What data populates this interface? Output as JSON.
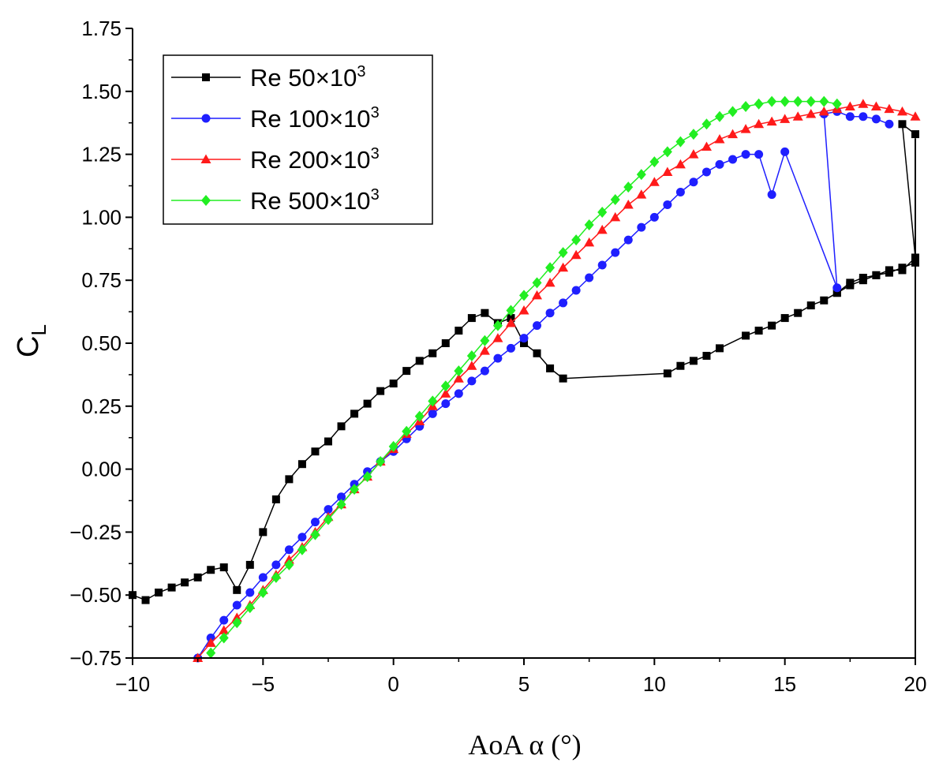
{
  "chart_data": {
    "type": "line",
    "title": "",
    "xlabel": "AoA α (°)",
    "ylabel": {
      "main": "C",
      "sub": "L"
    },
    "xlim": [
      -10,
      20
    ],
    "ylim": [
      -0.75,
      1.75
    ],
    "xticks": [
      -10,
      -5,
      0,
      5,
      10,
      15,
      20
    ],
    "xtick_labels": [
      "−10",
      "−5",
      "0",
      "5",
      "10",
      "15",
      "20"
    ],
    "yticks": [
      -0.75,
      -0.5,
      -0.25,
      0,
      0.25,
      0.5,
      0.75,
      1.0,
      1.25,
      1.5,
      1.75
    ],
    "ytick_labels": [
      "−0.75",
      "−0.50",
      "−0.25",
      "0.00",
      "0.25",
      "0.50",
      "0.75",
      "1.00",
      "1.25",
      "1.50",
      "1.75"
    ],
    "grid": false,
    "legend_position": "top-left",
    "series": [
      {
        "name": "Re 50×10",
        "name_sup": "3",
        "color": "#000000",
        "marker": "square",
        "points": [
          [
            -10,
            -0.5
          ],
          [
            -9.5,
            -0.52
          ],
          [
            -9,
            -0.49
          ],
          [
            -8.5,
            -0.47
          ],
          [
            -8,
            -0.45
          ],
          [
            -7.5,
            -0.43
          ],
          [
            -7,
            -0.4
          ],
          [
            -6.5,
            -0.39
          ],
          [
            -6,
            -0.48
          ],
          [
            -5.5,
            -0.38
          ],
          [
            -5,
            -0.25
          ],
          [
            -4.5,
            -0.12
          ],
          [
            -4,
            -0.04
          ],
          [
            -3.5,
            0.02
          ],
          [
            -3,
            0.07
          ],
          [
            -2.5,
            0.11
          ],
          [
            -2,
            0.17
          ],
          [
            -1.5,
            0.22
          ],
          [
            -1,
            0.26
          ],
          [
            -0.5,
            0.31
          ],
          [
            0,
            0.34
          ],
          [
            0.5,
            0.39
          ],
          [
            1,
            0.43
          ],
          [
            1.5,
            0.46
          ],
          [
            2,
            0.5
          ],
          [
            2.5,
            0.55
          ],
          [
            3,
            0.6
          ],
          [
            3.5,
            0.62
          ],
          [
            4,
            0.58
          ],
          [
            4.5,
            0.6
          ],
          [
            5,
            0.5
          ],
          [
            5.5,
            0.46
          ],
          [
            6,
            0.4
          ],
          [
            6.5,
            0.36
          ],
          [
            10.5,
            0.38
          ],
          [
            11,
            0.41
          ],
          [
            11.5,
            0.43
          ],
          [
            12,
            0.45
          ],
          [
            12.5,
            0.48
          ],
          [
            13.5,
            0.53
          ],
          [
            14,
            0.55
          ],
          [
            14.5,
            0.57
          ],
          [
            15,
            0.6
          ],
          [
            15.5,
            0.62
          ],
          [
            16,
            0.65
          ],
          [
            16.5,
            0.67
          ],
          [
            17,
            0.7
          ],
          [
            17.5,
            0.73
          ],
          [
            18,
            0.75
          ],
          [
            18.5,
            0.77
          ],
          [
            19,
            0.78
          ],
          [
            19.5,
            0.8
          ],
          [
            20,
            0.82
          ],
          [
            20,
            1.33
          ],
          [
            19.5,
            1.37
          ],
          [
            20,
            0.84
          ],
          [
            19.5,
            0.79
          ],
          [
            19,
            0.79
          ],
          [
            18.5,
            0.77
          ],
          [
            18,
            0.76
          ],
          [
            17.5,
            0.74
          ],
          [
            17,
            0.7
          ]
        ]
      },
      {
        "name": "Re 100×10",
        "name_sup": "3",
        "color": "#1f1fff",
        "marker": "circle",
        "points": [
          [
            -7.5,
            -0.75
          ],
          [
            -7,
            -0.67
          ],
          [
            -6.5,
            -0.6
          ],
          [
            -6,
            -0.54
          ],
          [
            -5.5,
            -0.49
          ],
          [
            -5,
            -0.43
          ],
          [
            -4.5,
            -0.38
          ],
          [
            -4,
            -0.32
          ],
          [
            -3.5,
            -0.27
          ],
          [
            -3,
            -0.21
          ],
          [
            -2.5,
            -0.16
          ],
          [
            -2,
            -0.11
          ],
          [
            -1.5,
            -0.06
          ],
          [
            -1,
            -0.01
          ],
          [
            -0.5,
            0.03
          ],
          [
            0,
            0.07
          ],
          [
            0.5,
            0.12
          ],
          [
            1,
            0.17
          ],
          [
            1.5,
            0.22
          ],
          [
            2,
            0.26
          ],
          [
            2.5,
            0.3
          ],
          [
            3,
            0.35
          ],
          [
            3.5,
            0.39
          ],
          [
            4,
            0.44
          ],
          [
            4.5,
            0.48
          ],
          [
            5,
            0.52
          ],
          [
            5.5,
            0.57
          ],
          [
            6,
            0.62
          ],
          [
            6.5,
            0.66
          ],
          [
            7,
            0.71
          ],
          [
            7.5,
            0.76
          ],
          [
            8,
            0.81
          ],
          [
            8.5,
            0.86
          ],
          [
            9,
            0.91
          ],
          [
            9.5,
            0.96
          ],
          [
            10,
            1.0
          ],
          [
            10.5,
            1.05
          ],
          [
            11,
            1.1
          ],
          [
            11.5,
            1.14
          ],
          [
            12,
            1.18
          ],
          [
            12.5,
            1.21
          ],
          [
            13,
            1.23
          ],
          [
            13.5,
            1.25
          ],
          [
            14,
            1.25
          ],
          [
            14.5,
            1.09
          ],
          [
            15,
            1.26
          ],
          [
            17,
            0.72
          ],
          [
            16.5,
            1.41
          ],
          [
            17,
            1.42
          ],
          [
            17.5,
            1.4
          ],
          [
            18,
            1.4
          ],
          [
            18.5,
            1.39
          ],
          [
            19,
            1.37
          ]
        ]
      },
      {
        "name": "Re 200×10",
        "name_sup": "3",
        "color": "#ff1a1a",
        "marker": "triangle",
        "points": [
          [
            -7.5,
            -0.75
          ],
          [
            -7,
            -0.69
          ],
          [
            -6.5,
            -0.64
          ],
          [
            -6,
            -0.59
          ],
          [
            -5.5,
            -0.54
          ],
          [
            -5,
            -0.48
          ],
          [
            -4.5,
            -0.42
          ],
          [
            -4,
            -0.36
          ],
          [
            -3.5,
            -0.31
          ],
          [
            -3,
            -0.25
          ],
          [
            -2.5,
            -0.19
          ],
          [
            -2,
            -0.14
          ],
          [
            -1.5,
            -0.08
          ],
          [
            -1,
            -0.03
          ],
          [
            -0.5,
            0.03
          ],
          [
            0,
            0.08
          ],
          [
            0.5,
            0.14
          ],
          [
            1,
            0.19
          ],
          [
            1.5,
            0.25
          ],
          [
            2,
            0.3
          ],
          [
            2.5,
            0.36
          ],
          [
            3,
            0.41
          ],
          [
            3.5,
            0.47
          ],
          [
            4,
            0.52
          ],
          [
            4.5,
            0.58
          ],
          [
            5,
            0.63
          ],
          [
            5.5,
            0.69
          ],
          [
            6,
            0.74
          ],
          [
            6.5,
            0.8
          ],
          [
            7,
            0.85
          ],
          [
            7.5,
            0.9
          ],
          [
            8,
            0.95
          ],
          [
            8.5,
            1.0
          ],
          [
            9,
            1.05
          ],
          [
            9.5,
            1.09
          ],
          [
            10,
            1.14
          ],
          [
            10.5,
            1.18
          ],
          [
            11,
            1.21
          ],
          [
            11.5,
            1.25
          ],
          [
            12,
            1.28
          ],
          [
            12.5,
            1.31
          ],
          [
            13,
            1.33
          ],
          [
            13.5,
            1.35
          ],
          [
            14,
            1.37
          ],
          [
            14.5,
            1.38
          ],
          [
            15,
            1.39
          ],
          [
            15.5,
            1.4
          ],
          [
            16,
            1.41
          ],
          [
            16.5,
            1.42
          ],
          [
            17,
            1.43
          ],
          [
            17.5,
            1.44
          ],
          [
            18,
            1.45
          ],
          [
            18.5,
            1.44
          ],
          [
            19,
            1.43
          ],
          [
            19.5,
            1.42
          ],
          [
            20,
            1.4
          ]
        ]
      },
      {
        "name": "Re 500×10",
        "name_sup": "3",
        "color": "#22ee22",
        "marker": "diamond",
        "points": [
          [
            -7,
            -0.73
          ],
          [
            -6.5,
            -0.67
          ],
          [
            -6,
            -0.61
          ],
          [
            -5.5,
            -0.55
          ],
          [
            -5,
            -0.49
          ],
          [
            -4.5,
            -0.43
          ],
          [
            -4,
            -0.38
          ],
          [
            -3.5,
            -0.32
          ],
          [
            -3,
            -0.26
          ],
          [
            -2.5,
            -0.2
          ],
          [
            -2,
            -0.14
          ],
          [
            -1.5,
            -0.08
          ],
          [
            -1,
            -0.03
          ],
          [
            -0.5,
            0.03
          ],
          [
            0,
            0.09
          ],
          [
            0.5,
            0.15
          ],
          [
            1,
            0.21
          ],
          [
            1.5,
            0.27
          ],
          [
            2,
            0.33
          ],
          [
            2.5,
            0.39
          ],
          [
            3,
            0.45
          ],
          [
            3.5,
            0.51
          ],
          [
            4,
            0.57
          ],
          [
            4.5,
            0.63
          ],
          [
            5,
            0.69
          ],
          [
            5.5,
            0.74
          ],
          [
            6,
            0.8
          ],
          [
            6.5,
            0.86
          ],
          [
            7,
            0.91
          ],
          [
            7.5,
            0.97
          ],
          [
            8,
            1.02
          ],
          [
            8.5,
            1.07
          ],
          [
            9,
            1.12
          ],
          [
            9.5,
            1.17
          ],
          [
            10,
            1.22
          ],
          [
            10.5,
            1.26
          ],
          [
            11,
            1.3
          ],
          [
            11.5,
            1.33
          ],
          [
            12,
            1.37
          ],
          [
            12.5,
            1.4
          ],
          [
            13,
            1.42
          ],
          [
            13.5,
            1.44
          ],
          [
            14,
            1.45
          ],
          [
            14.5,
            1.46
          ],
          [
            15,
            1.46
          ],
          [
            15.5,
            1.46
          ],
          [
            16,
            1.46
          ],
          [
            16.5,
            1.46
          ],
          [
            17,
            1.45
          ]
        ]
      }
    ]
  }
}
